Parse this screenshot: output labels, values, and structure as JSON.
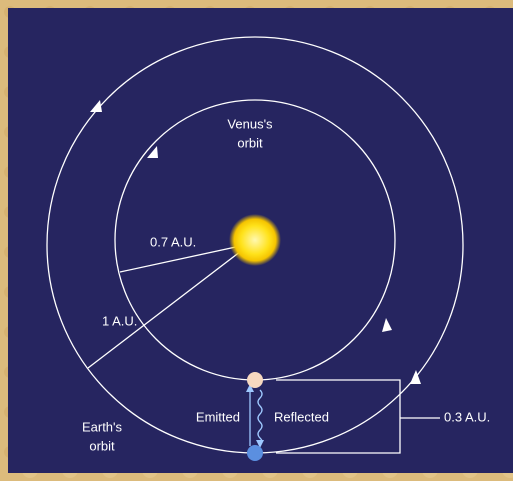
{
  "labels": {
    "venus_orbit": [
      "Venus's",
      "orbit"
    ],
    "earth_orbit": [
      "Earth's",
      "orbit"
    ],
    "venus_distance": "0.7 A.U.",
    "earth_distance": "1 A.U.",
    "separation": "0.3 A.U.",
    "emitted": "Emitted",
    "reflected": "Reflected"
  }
}
